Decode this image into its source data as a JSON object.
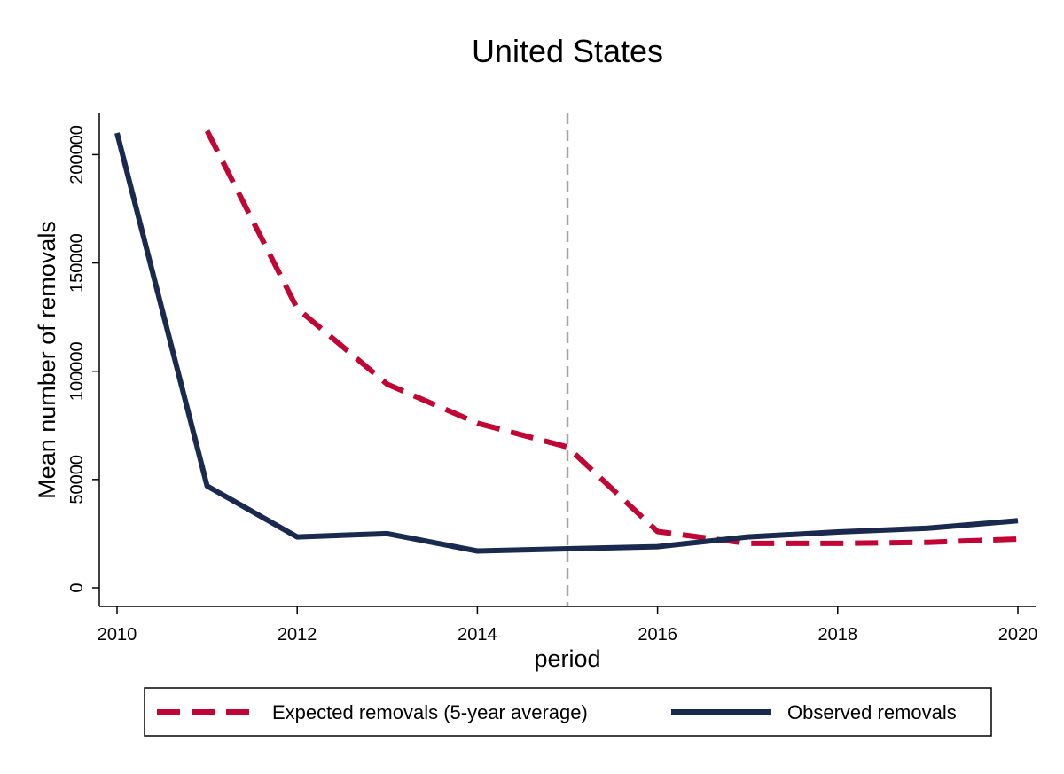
{
  "chart_data": {
    "type": "line",
    "title": "United States",
    "xlabel": "period",
    "ylabel": "Mean number of removals",
    "xlim": [
      2010,
      2020
    ],
    "ylim": [
      0,
      210000
    ],
    "x_ticks": [
      "2010",
      "2012",
      "2014",
      "2016",
      "2018",
      "2020"
    ],
    "y_ticks": [
      "0",
      "50000",
      "100000",
      "150000",
      "200000"
    ],
    "reference_line": {
      "x": 2015,
      "style": "dashed",
      "color": "#a6a6a6"
    },
    "grid": false,
    "legend_position": "bottom",
    "series": [
      {
        "name": "Expected removals (5-year average)",
        "color": "#c10534",
        "style": "dashed",
        "x": [
          2011,
          2012,
          2013,
          2014,
          2015,
          2016,
          2017,
          2018,
          2019,
          2020
        ],
        "values": [
          211000,
          129000,
          94000,
          76000,
          65000,
          26000,
          20500,
          20500,
          21000,
          22500
        ]
      },
      {
        "name": "Observed removals",
        "color": "#1a2a4f",
        "style": "solid",
        "x": [
          2010,
          2011,
          2012,
          2013,
          2014,
          2015,
          2016,
          2017,
          2018,
          2019,
          2020
        ],
        "values": [
          210000,
          47000,
          23500,
          25000,
          17000,
          18000,
          19000,
          23500,
          25800,
          27500,
          31000
        ]
      }
    ]
  }
}
